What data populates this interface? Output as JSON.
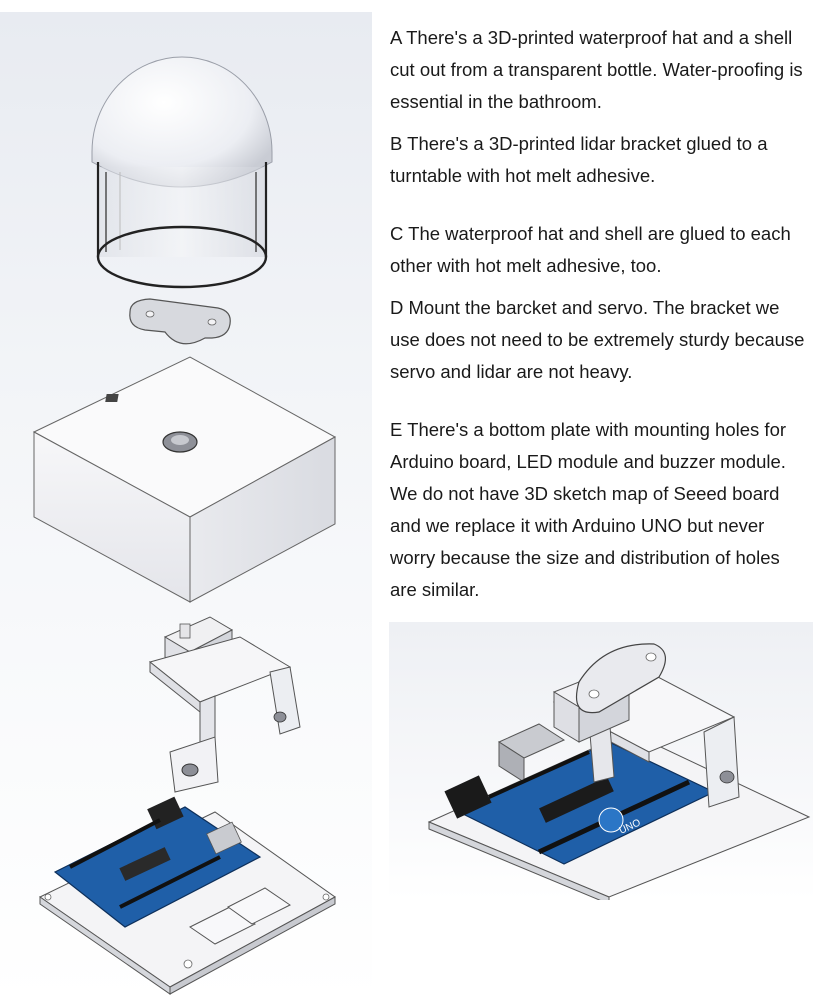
{
  "steps": {
    "a": "A There's a 3D-printed waterproof hat and a shell cut out from a transparent bottle. Water-proofing is essential in the bathroom.",
    "b": "B There's a 3D-printed lidar bracket glued to a turntable with hot melt adhesive.",
    "c": "C The waterproof hat and shell are glued to each other with hot melt adhesive, too.",
    "d": "D Mount the barcket and servo. The bracket we use does not need to be extremely sturdy because servo and lidar are not heavy.",
    "e": "E There's a bottom plate with mounting holes for Arduino board, LED module and buzzer module. We do not have 3D sketch map of Seeed board and we replace it with Arduino UNO but never worry because the size and distribution of holes are similar."
  },
  "board_labels": {
    "uno": "UNO"
  },
  "colors": {
    "board_blue": "#1f5fa8",
    "panel_white": "#f4f4f6",
    "outline": "#333333"
  }
}
